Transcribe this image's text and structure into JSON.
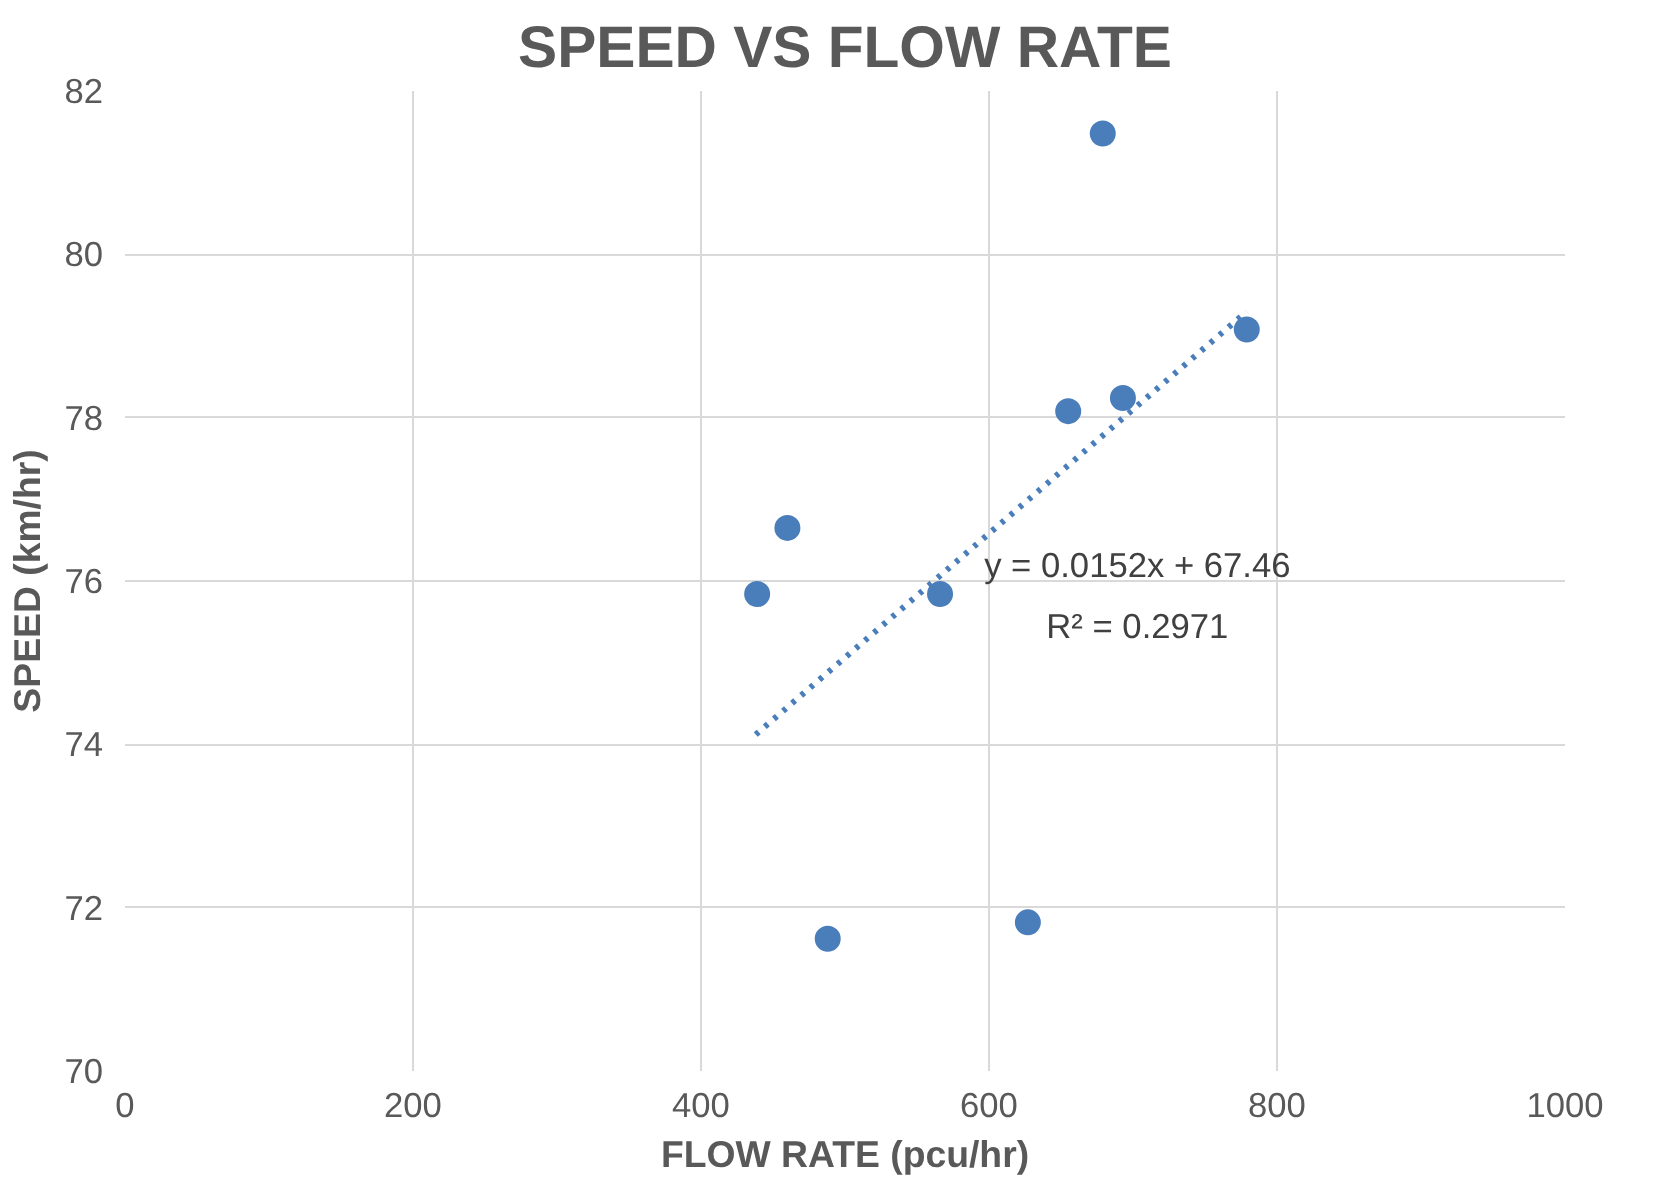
{
  "chart_data": {
    "type": "scatter",
    "title": "SPEED VS FLOW RATE",
    "xlabel": "FLOW RATE (pcu/hr)",
    "ylabel": "SPEED (km/hr)",
    "xlim": [
      0,
      1000
    ],
    "xticks": [
      0,
      200,
      400,
      600,
      800,
      1000
    ],
    "ylim": [
      70,
      82
    ],
    "yticks": [
      70,
      72,
      74,
      76,
      78,
      80,
      82
    ],
    "grid": true,
    "marker": "circle",
    "series": [
      {
        "color": "#4a7ebb",
        "x": [
          439,
          460,
          488,
          566,
          627,
          655,
          679,
          693,
          779
        ],
        "values": [
          75.84,
          76.65,
          71.62,
          75.84,
          71.82,
          78.08,
          81.48,
          78.24,
          79.08
        ]
      },
      {
        "type": "line",
        "color": "#4a7ebb",
        "line_style": "dotted",
        "marker": "none",
        "x": [
          438,
          779
        ],
        "values": [
          74.12,
          79.3
        ]
      }
    ],
    "annotations": [
      "y = 0.0152x + 67.46",
      "R² = 0.2971"
    ]
  }
}
